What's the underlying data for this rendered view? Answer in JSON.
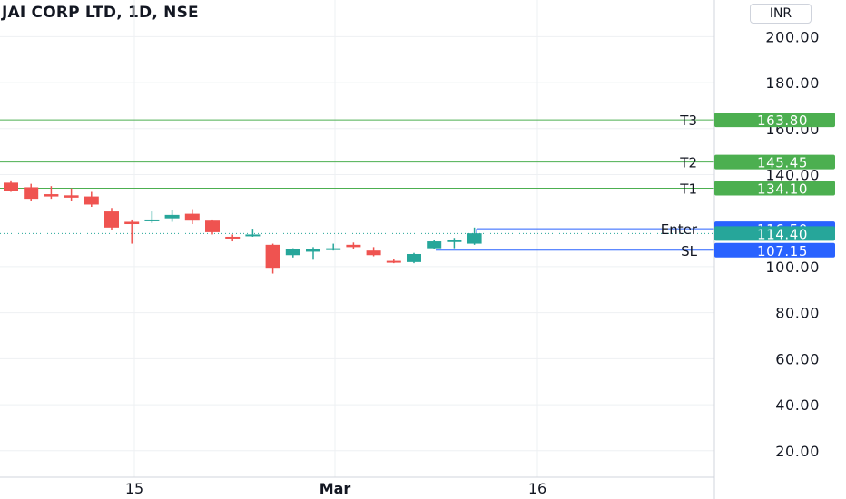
{
  "header": {
    "title": "JAI CORP LTD, 1D, NSE",
    "currency": "INR"
  },
  "colors": {
    "up": "#26a69a",
    "down": "#ef5350",
    "target": "#4caf50",
    "entry": "#2962ff",
    "grid": "#eef0f3"
  },
  "chart_data": {
    "type": "candlestick",
    "y_ticks": [
      "20.00",
      "40.00",
      "60.00",
      "80.00",
      "100.00",
      "140.00",
      "160.00",
      "180.00",
      "200.00"
    ],
    "ylim": [
      5,
      205
    ],
    "x_ticks": [
      "15",
      "Mar",
      "16"
    ],
    "candles": [
      {
        "o": 136.5,
        "h": 137.5,
        "l": 132.5,
        "c": 133.0
      },
      {
        "o": 134.5,
        "h": 136.0,
        "l": 128.5,
        "c": 129.5
      },
      {
        "o": 131.5,
        "h": 135.0,
        "l": 129.5,
        "c": 130.5
      },
      {
        "o": 131.0,
        "h": 134.0,
        "l": 128.5,
        "c": 130.0
      },
      {
        "o": 130.5,
        "h": 132.5,
        "l": 126.0,
        "c": 127.0
      },
      {
        "o": 124.0,
        "h": 125.5,
        "l": 116.0,
        "c": 117.0
      },
      {
        "o": 119.5,
        "h": 120.5,
        "l": 110.0,
        "c": 118.5
      },
      {
        "o": 120.0,
        "h": 124.0,
        "l": 119.0,
        "c": 120.5
      },
      {
        "o": 121.0,
        "h": 124.5,
        "l": 119.5,
        "c": 122.5
      },
      {
        "o": 123.0,
        "h": 125.0,
        "l": 118.5,
        "c": 120.0
      },
      {
        "o": 120.0,
        "h": 120.5,
        "l": 114.0,
        "c": 115.0
      },
      {
        "o": 113.0,
        "h": 114.0,
        "l": 111.0,
        "c": 112.5
      },
      {
        "o": 113.5,
        "h": 116.5,
        "l": 113.0,
        "c": 114.0
      },
      {
        "o": 109.5,
        "h": 110.0,
        "l": 97.0,
        "c": 99.5
      },
      {
        "o": 105.0,
        "h": 108.0,
        "l": 104.0,
        "c": 107.5
      },
      {
        "o": 106.5,
        "h": 108.5,
        "l": 103.0,
        "c": 107.5
      },
      {
        "o": 107.5,
        "h": 110.0,
        "l": 107.0,
        "c": 108.0
      },
      {
        "o": 109.5,
        "h": 110.5,
        "l": 107.5,
        "c": 108.5
      },
      {
        "o": 107.0,
        "h": 108.5,
        "l": 104.5,
        "c": 105.0
      },
      {
        "o": 102.5,
        "h": 103.5,
        "l": 101.5,
        "c": 102.0
      },
      {
        "o": 102.0,
        "h": 106.0,
        "l": 101.5,
        "c": 105.5
      },
      {
        "o": 108.0,
        "h": 111.5,
        "l": 107.5,
        "c": 111.0
      },
      {
        "o": 111.0,
        "h": 112.5,
        "l": 108.0,
        "c": 111.5
      },
      {
        "o": 110.0,
        "h": 117.0,
        "l": 109.5,
        "c": 114.5
      }
    ],
    "levels": [
      {
        "name": "T3",
        "value": 163.8,
        "label": "163.80",
        "kind": "target"
      },
      {
        "name": "T2",
        "value": 145.45,
        "label": "145.45",
        "kind": "target"
      },
      {
        "name": "T1",
        "value": 134.1,
        "label": "134.10",
        "kind": "target"
      },
      {
        "name": "Enter",
        "value": 116.5,
        "label": "116.50",
        "kind": "entry"
      },
      {
        "name": "SL",
        "value": 107.15,
        "label": "107.15",
        "kind": "entry"
      }
    ],
    "last_price": {
      "value": 114.4,
      "label": "114.40"
    }
  }
}
